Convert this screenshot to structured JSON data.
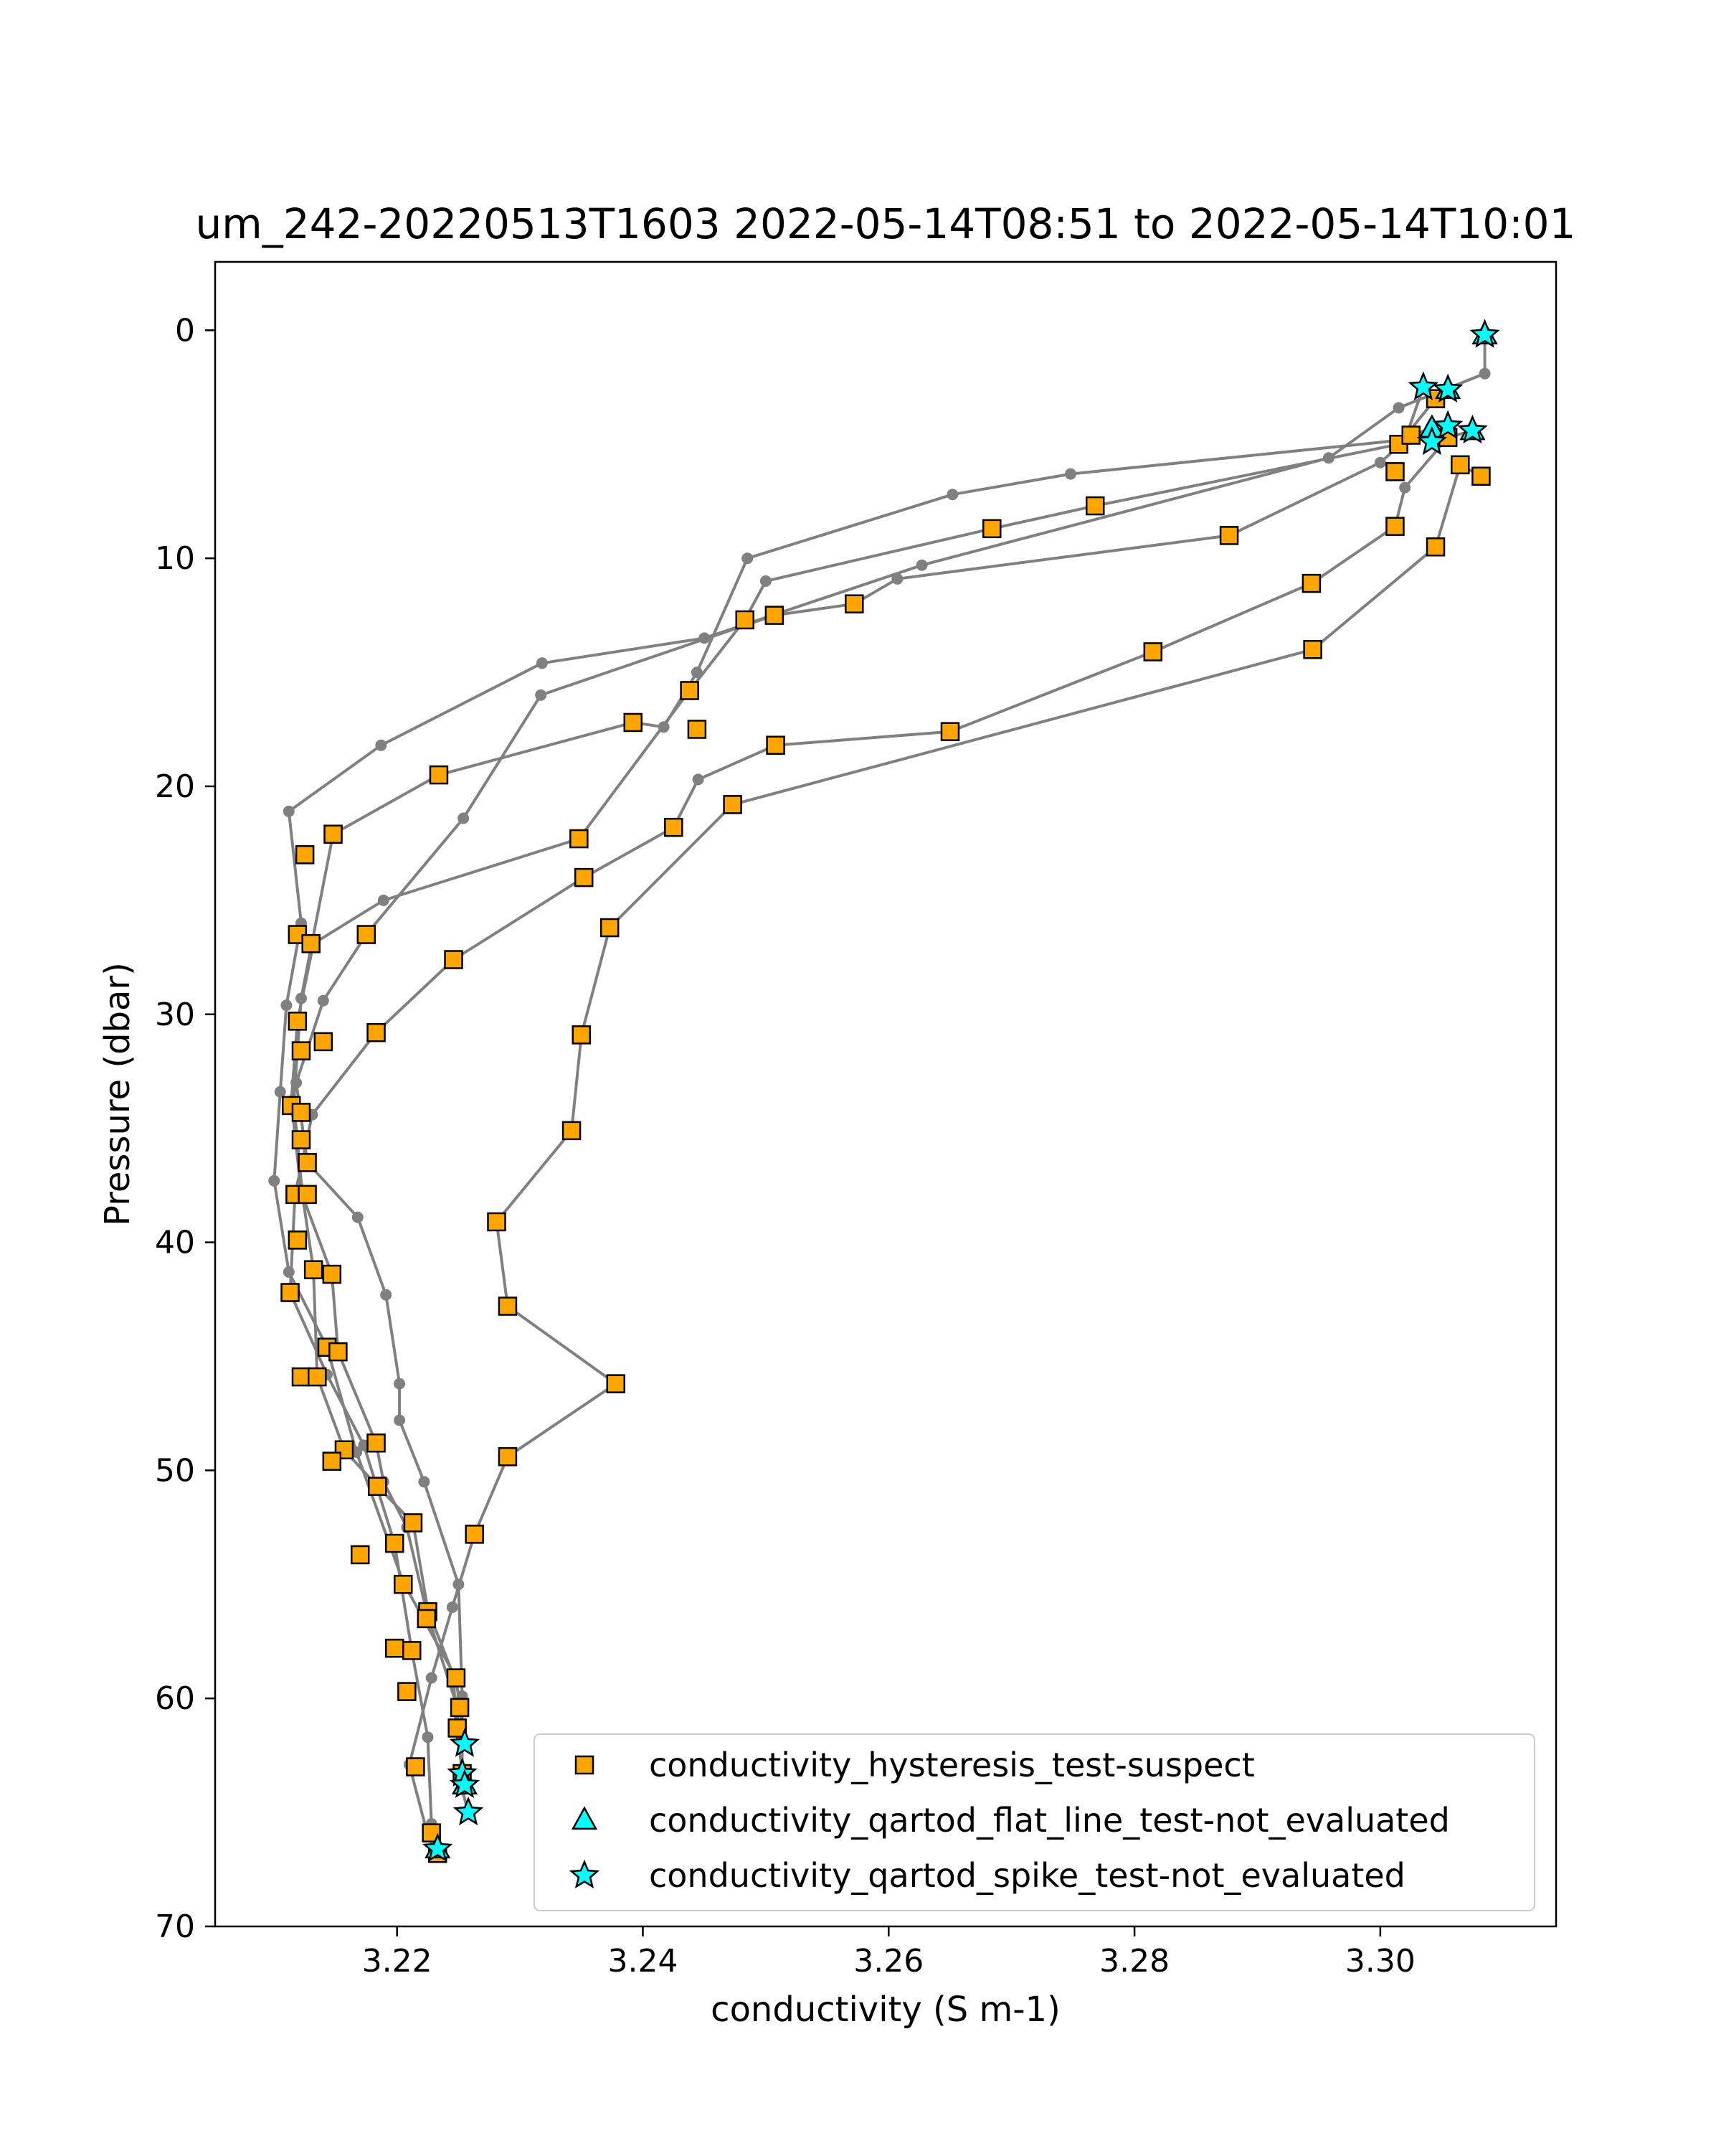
{
  "chart_data": {
    "type": "scatter",
    "title": "um_242-20220513T1603 2022-05-14T08:51 to 2022-05-14T10:01",
    "xlabel": "conductivity (S m-1)",
    "ylabel": "Pressure (dbar)",
    "xlim": [
      3.2052,
      3.3143
    ],
    "ylim": [
      70,
      -3
    ],
    "y_inverted": true,
    "x_ticks": [
      3.22,
      3.24,
      3.26,
      3.28,
      3.3
    ],
    "x_tick_labels": [
      "3.22",
      "3.24",
      "3.26",
      "3.28",
      "3.30"
    ],
    "y_ticks": [
      0,
      10,
      20,
      30,
      40,
      50,
      60,
      70
    ],
    "y_tick_labels": [
      "0",
      "10",
      "20",
      "30",
      "40",
      "50",
      "60",
      "70"
    ],
    "grid": false,
    "legend_position": "lower-right",
    "colors": {
      "profile_line": "#808080",
      "suspect_fill": "#ffa500",
      "not_evaluated_fill": "#00ffff",
      "marker_edge": "#000000"
    },
    "profiles": [
      [
        [
          3.3085,
          0.2
        ],
        [
          3.3085,
          1.9
        ],
        [
          3.3015,
          3.4
        ],
        [
          3.2958,
          5.6
        ],
        [
          3.2627,
          10.3
        ],
        [
          3.245,
          13.5
        ],
        [
          3.2318,
          14.6
        ],
        [
          3.2187,
          18.2
        ],
        [
          3.2112,
          21.1
        ],
        [
          3.2122,
          26.0
        ],
        [
          3.211,
          29.6
        ],
        [
          3.2105,
          33.4
        ],
        [
          3.21,
          37.3
        ],
        [
          3.2112,
          41.3
        ],
        [
          3.2143,
          44.6
        ],
        [
          3.2167,
          49.2
        ],
        [
          3.2205,
          54.9
        ],
        [
          3.2248,
          59.1
        ],
        [
          3.2255,
          62.0
        ]
      ],
      [
        [
          3.3035,
          2.5
        ],
        [
          3.302,
          4.8
        ],
        [
          3.2748,
          6.3
        ],
        [
          3.2652,
          7.2
        ],
        [
          3.2485,
          10.0
        ],
        [
          3.2444,
          15.0
        ],
        [
          3.2417,
          17.4
        ],
        [
          3.2392,
          17.2
        ],
        [
          3.2234,
          19.5
        ],
        [
          3.2148,
          22.1
        ],
        [
          3.2122,
          29.3
        ],
        [
          3.2116,
          33.9
        ],
        [
          3.2123,
          37.9
        ],
        [
          3.2132,
          41.2
        ],
        [
          3.2135,
          45.9
        ],
        [
          3.2157,
          49.1
        ],
        [
          3.2184,
          50.7
        ],
        [
          3.2213,
          52.3
        ],
        [
          3.2225,
          56.1
        ],
        [
          3.2246,
          59.0
        ],
        [
          3.2248,
          61.3
        ],
        [
          3.2253,
          63.1
        ]
      ],
      [
        [
          3.3055,
          2.6
        ],
        [
          3.3045,
          3.0
        ],
        [
          3.3015,
          5.0
        ],
        [
          3.2768,
          7.7
        ],
        [
          3.2684,
          8.7
        ],
        [
          3.25,
          11.0
        ],
        [
          3.2483,
          12.7
        ],
        [
          3.2438,
          15.8
        ],
        [
          3.2348,
          22.3
        ],
        [
          3.2189,
          25.0
        ],
        [
          3.2132,
          26.9
        ],
        [
          3.2119,
          30.3
        ],
        [
          3.2114,
          33.8
        ],
        [
          3.2122,
          37.8
        ],
        [
          3.2147,
          41.4
        ],
        [
          3.2152,
          44.8
        ],
        [
          3.2183,
          48.8
        ],
        [
          3.2189,
          50.5
        ],
        [
          3.2208,
          52.5
        ],
        [
          3.2224,
          56.2
        ],
        [
          3.2248,
          60.2
        ],
        [
          3.2255,
          63.6
        ]
      ],
      [
        [
          3.3042,
          4.3
        ],
        [
          3.3025,
          4.6
        ],
        [
          3.3,
          5.8
        ],
        [
          3.2877,
          9.0
        ],
        [
          3.2607,
          10.9
        ],
        [
          3.2572,
          12.0
        ],
        [
          3.2507,
          12.5
        ],
        [
          3.2317,
          16.0
        ],
        [
          3.2254,
          21.4
        ],
        [
          3.2175,
          26.5
        ],
        [
          3.214,
          29.4
        ],
        [
          3.2118,
          33.0
        ],
        [
          3.2127,
          36.5
        ],
        [
          3.2168,
          38.9
        ],
        [
          3.2191,
          42.3
        ],
        [
          3.2202,
          46.2
        ],
        [
          3.2202,
          47.8
        ],
        [
          3.2222,
          50.5
        ],
        [
          3.225,
          55.0
        ],
        [
          3.2253,
          59.9
        ],
        [
          3.2253,
          64.0
        ],
        [
          3.2258,
          65.0
        ]
      ],
      [
        [
          3.3075,
          4.4
        ],
        [
          3.3055,
          4.7
        ],
        [
          3.302,
          6.9
        ],
        [
          3.3012,
          8.6
        ],
        [
          3.2944,
          11.1
        ],
        [
          3.2815,
          14.1
        ],
        [
          3.265,
          17.6
        ],
        [
          3.2508,
          18.2
        ],
        [
          3.2445,
          19.7
        ],
        [
          3.2425,
          21.8
        ],
        [
          3.2352,
          24.0
        ],
        [
          3.2246,
          27.6
        ],
        [
          3.2183,
          30.8
        ],
        [
          3.2131,
          34.4
        ],
        [
          3.2117,
          37.9
        ],
        [
          3.2113,
          42.2
        ],
        [
          3.2143,
          45.8
        ],
        [
          3.2173,
          48.9
        ],
        [
          3.2198,
          53.2
        ],
        [
          3.2212,
          57.9
        ],
        [
          3.2225,
          61.7
        ],
        [
          3.2228,
          65.5
        ]
      ],
      [
        [
          3.3082,
          6.4
        ],
        [
          3.3065,
          5.9
        ],
        [
          3.3045,
          9.5
        ],
        [
          3.2945,
          14.0
        ],
        [
          3.2473,
          20.8
        ],
        [
          3.2373,
          26.2
        ],
        [
          3.235,
          30.9
        ],
        [
          3.2342,
          35.1
        ],
        [
          3.2281,
          39.1
        ],
        [
          3.229,
          42.8
        ],
        [
          3.2378,
          46.2
        ],
        [
          3.229,
          49.4
        ],
        [
          3.2263,
          52.8
        ],
        [
          3.2245,
          56.0
        ],
        [
          3.2228,
          59.1
        ],
        [
          3.221,
          62.9
        ],
        [
          3.2225,
          66.0
        ],
        [
          3.2232,
          66.8
        ]
      ]
    ],
    "series": [
      {
        "name": "conductivity_hysteresis_test-suspect",
        "marker": "square",
        "points": [
          [
            3.3045,
            3.0
          ],
          [
            3.3015,
            5.0
          ],
          [
            3.3025,
            4.6
          ],
          [
            3.3055,
            4.7
          ],
          [
            3.3012,
            6.2
          ],
          [
            3.3065,
            5.9
          ],
          [
            3.3082,
            6.4
          ],
          [
            3.2768,
            7.7
          ],
          [
            3.2684,
            8.7
          ],
          [
            3.2877,
            9.0
          ],
          [
            3.3012,
            8.6
          ],
          [
            3.3045,
            9.5
          ],
          [
            3.2944,
            11.1
          ],
          [
            3.2945,
            14.0
          ],
          [
            3.2815,
            14.1
          ],
          [
            3.2572,
            12.0
          ],
          [
            3.2507,
            12.5
          ],
          [
            3.2483,
            12.7
          ],
          [
            3.265,
            17.6
          ],
          [
            3.2508,
            18.2
          ],
          [
            3.2438,
            15.8
          ],
          [
            3.2392,
            17.2
          ],
          [
            3.2444,
            17.5
          ],
          [
            3.2234,
            19.5
          ],
          [
            3.2473,
            20.8
          ],
          [
            3.2425,
            21.8
          ],
          [
            3.2148,
            22.1
          ],
          [
            3.2125,
            23.0
          ],
          [
            3.2348,
            22.3
          ],
          [
            3.2352,
            24.0
          ],
          [
            3.2373,
            26.2
          ],
          [
            3.2175,
            26.5
          ],
          [
            3.2119,
            26.5
          ],
          [
            3.213,
            26.9
          ],
          [
            3.2246,
            27.6
          ],
          [
            3.2119,
            30.3
          ],
          [
            3.2183,
            30.8
          ],
          [
            3.235,
            30.9
          ],
          [
            3.214,
            31.2
          ],
          [
            3.2122,
            31.6
          ],
          [
            3.2114,
            34.0
          ],
          [
            3.2122,
            34.3
          ],
          [
            3.2342,
            35.1
          ],
          [
            3.2122,
            35.5
          ],
          [
            3.2127,
            36.5
          ],
          [
            3.2117,
            37.9
          ],
          [
            3.2127,
            37.9
          ],
          [
            3.2281,
            39.1
          ],
          [
            3.2119,
            39.9
          ],
          [
            3.2132,
            41.2
          ],
          [
            3.2147,
            41.4
          ],
          [
            3.2113,
            42.2
          ],
          [
            3.229,
            42.8
          ],
          [
            3.2143,
            44.6
          ],
          [
            3.2152,
            44.8
          ],
          [
            3.2122,
            45.9
          ],
          [
            3.2135,
            45.9
          ],
          [
            3.2378,
            46.2
          ],
          [
            3.2183,
            48.8
          ],
          [
            3.2157,
            49.1
          ],
          [
            3.2147,
            49.6
          ],
          [
            3.229,
            49.4
          ],
          [
            3.2184,
            50.7
          ],
          [
            3.2213,
            52.3
          ],
          [
            3.2263,
            52.8
          ],
          [
            3.2198,
            53.2
          ],
          [
            3.217,
            53.7
          ],
          [
            3.2205,
            55.0
          ],
          [
            3.2225,
            56.2
          ],
          [
            3.2224,
            56.5
          ],
          [
            3.2198,
            57.8
          ],
          [
            3.2212,
            57.9
          ],
          [
            3.2248,
            59.1
          ],
          [
            3.2208,
            59.7
          ],
          [
            3.2251,
            60.4
          ],
          [
            3.2249,
            61.3
          ],
          [
            3.2215,
            63.0
          ],
          [
            3.2253,
            63.3
          ],
          [
            3.2228,
            65.9
          ],
          [
            3.2233,
            66.8
          ]
        ]
      },
      {
        "name": "conductivity_qartod_flat_line_test-not_evaluated",
        "marker": "triangle",
        "points": [
          [
            3.3085,
            0.2
          ],
          [
            3.3055,
            2.6
          ],
          [
            3.3042,
            4.3
          ],
          [
            3.3075,
            4.4
          ],
          [
            3.2255,
            63.8
          ],
          [
            3.2233,
            66.6
          ]
        ]
      },
      {
        "name": "conductivity_qartod_spike_test-not_evaluated",
        "marker": "star",
        "points": [
          [
            3.3085,
            0.2
          ],
          [
            3.3035,
            2.5
          ],
          [
            3.3055,
            2.6
          ],
          [
            3.3055,
            4.2
          ],
          [
            3.3075,
            4.4
          ],
          [
            3.3042,
            4.9
          ],
          [
            3.2255,
            62.0
          ],
          [
            3.2253,
            63.3
          ],
          [
            3.2255,
            63.8
          ],
          [
            3.2258,
            65.0
          ],
          [
            3.2233,
            66.6
          ]
        ]
      }
    ]
  }
}
